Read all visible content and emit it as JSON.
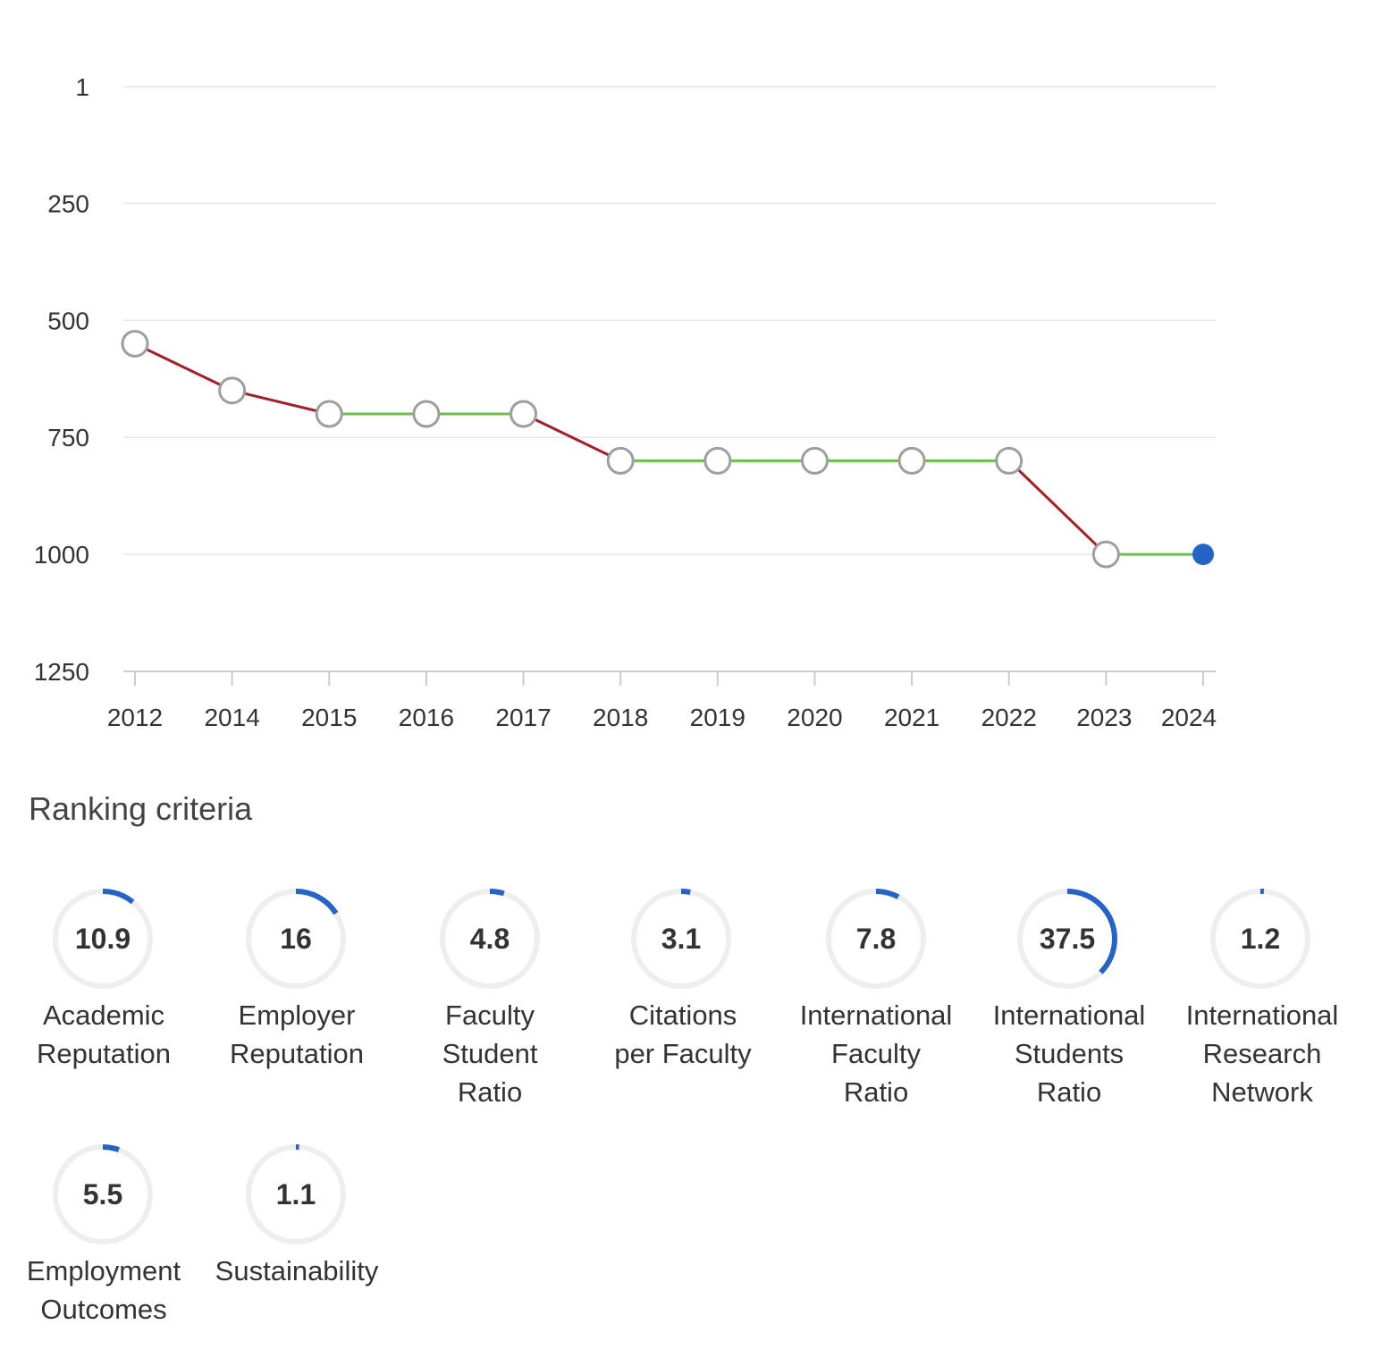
{
  "chart_data": {
    "type": "line",
    "x": [
      "2012",
      "2014",
      "2015",
      "2016",
      "2017",
      "2018",
      "2019",
      "2020",
      "2021",
      "2022",
      "2023",
      "2024"
    ],
    "y": [
      550,
      650,
      700,
      700,
      700,
      800,
      800,
      800,
      800,
      800,
      1000,
      1000
    ],
    "yticks": [
      "1",
      "250",
      "500",
      "750",
      "1000",
      "1250"
    ],
    "ylim": [
      1,
      1250
    ],
    "y_reversed": true,
    "grid": true,
    "colors": {
      "decline": "#a3202b",
      "unchanged": "#6abf4b",
      "marker_fill": "#ffffff",
      "marker_stroke": "#9e9e9e",
      "current_marker": "#2563c6",
      "gridline": "#e6e6e6",
      "axis": "#cccccc"
    }
  },
  "criteria": {
    "title": "Ranking criteria",
    "ring_color": "#2563c6",
    "track_color": "#eeeeee",
    "items": [
      {
        "value": "10.9",
        "lines": [
          "Academic",
          "Reputation"
        ]
      },
      {
        "value": "16",
        "lines": [
          "Employer",
          "Reputation"
        ]
      },
      {
        "value": "4.8",
        "lines": [
          "Faculty",
          "Student",
          "Ratio"
        ]
      },
      {
        "value": "3.1",
        "lines": [
          "Citations",
          "per Faculty"
        ]
      },
      {
        "value": "7.8",
        "lines": [
          "International",
          "Faculty",
          "Ratio"
        ]
      },
      {
        "value": "37.5",
        "lines": [
          "International",
          "Students",
          "Ratio"
        ]
      },
      {
        "value": "1.2",
        "lines": [
          "International",
          "Research",
          "Network"
        ]
      },
      {
        "value": "5.5",
        "lines": [
          "Employment",
          "Outcomes"
        ]
      },
      {
        "value": "1.1",
        "lines": [
          "Sustainability"
        ]
      }
    ]
  }
}
